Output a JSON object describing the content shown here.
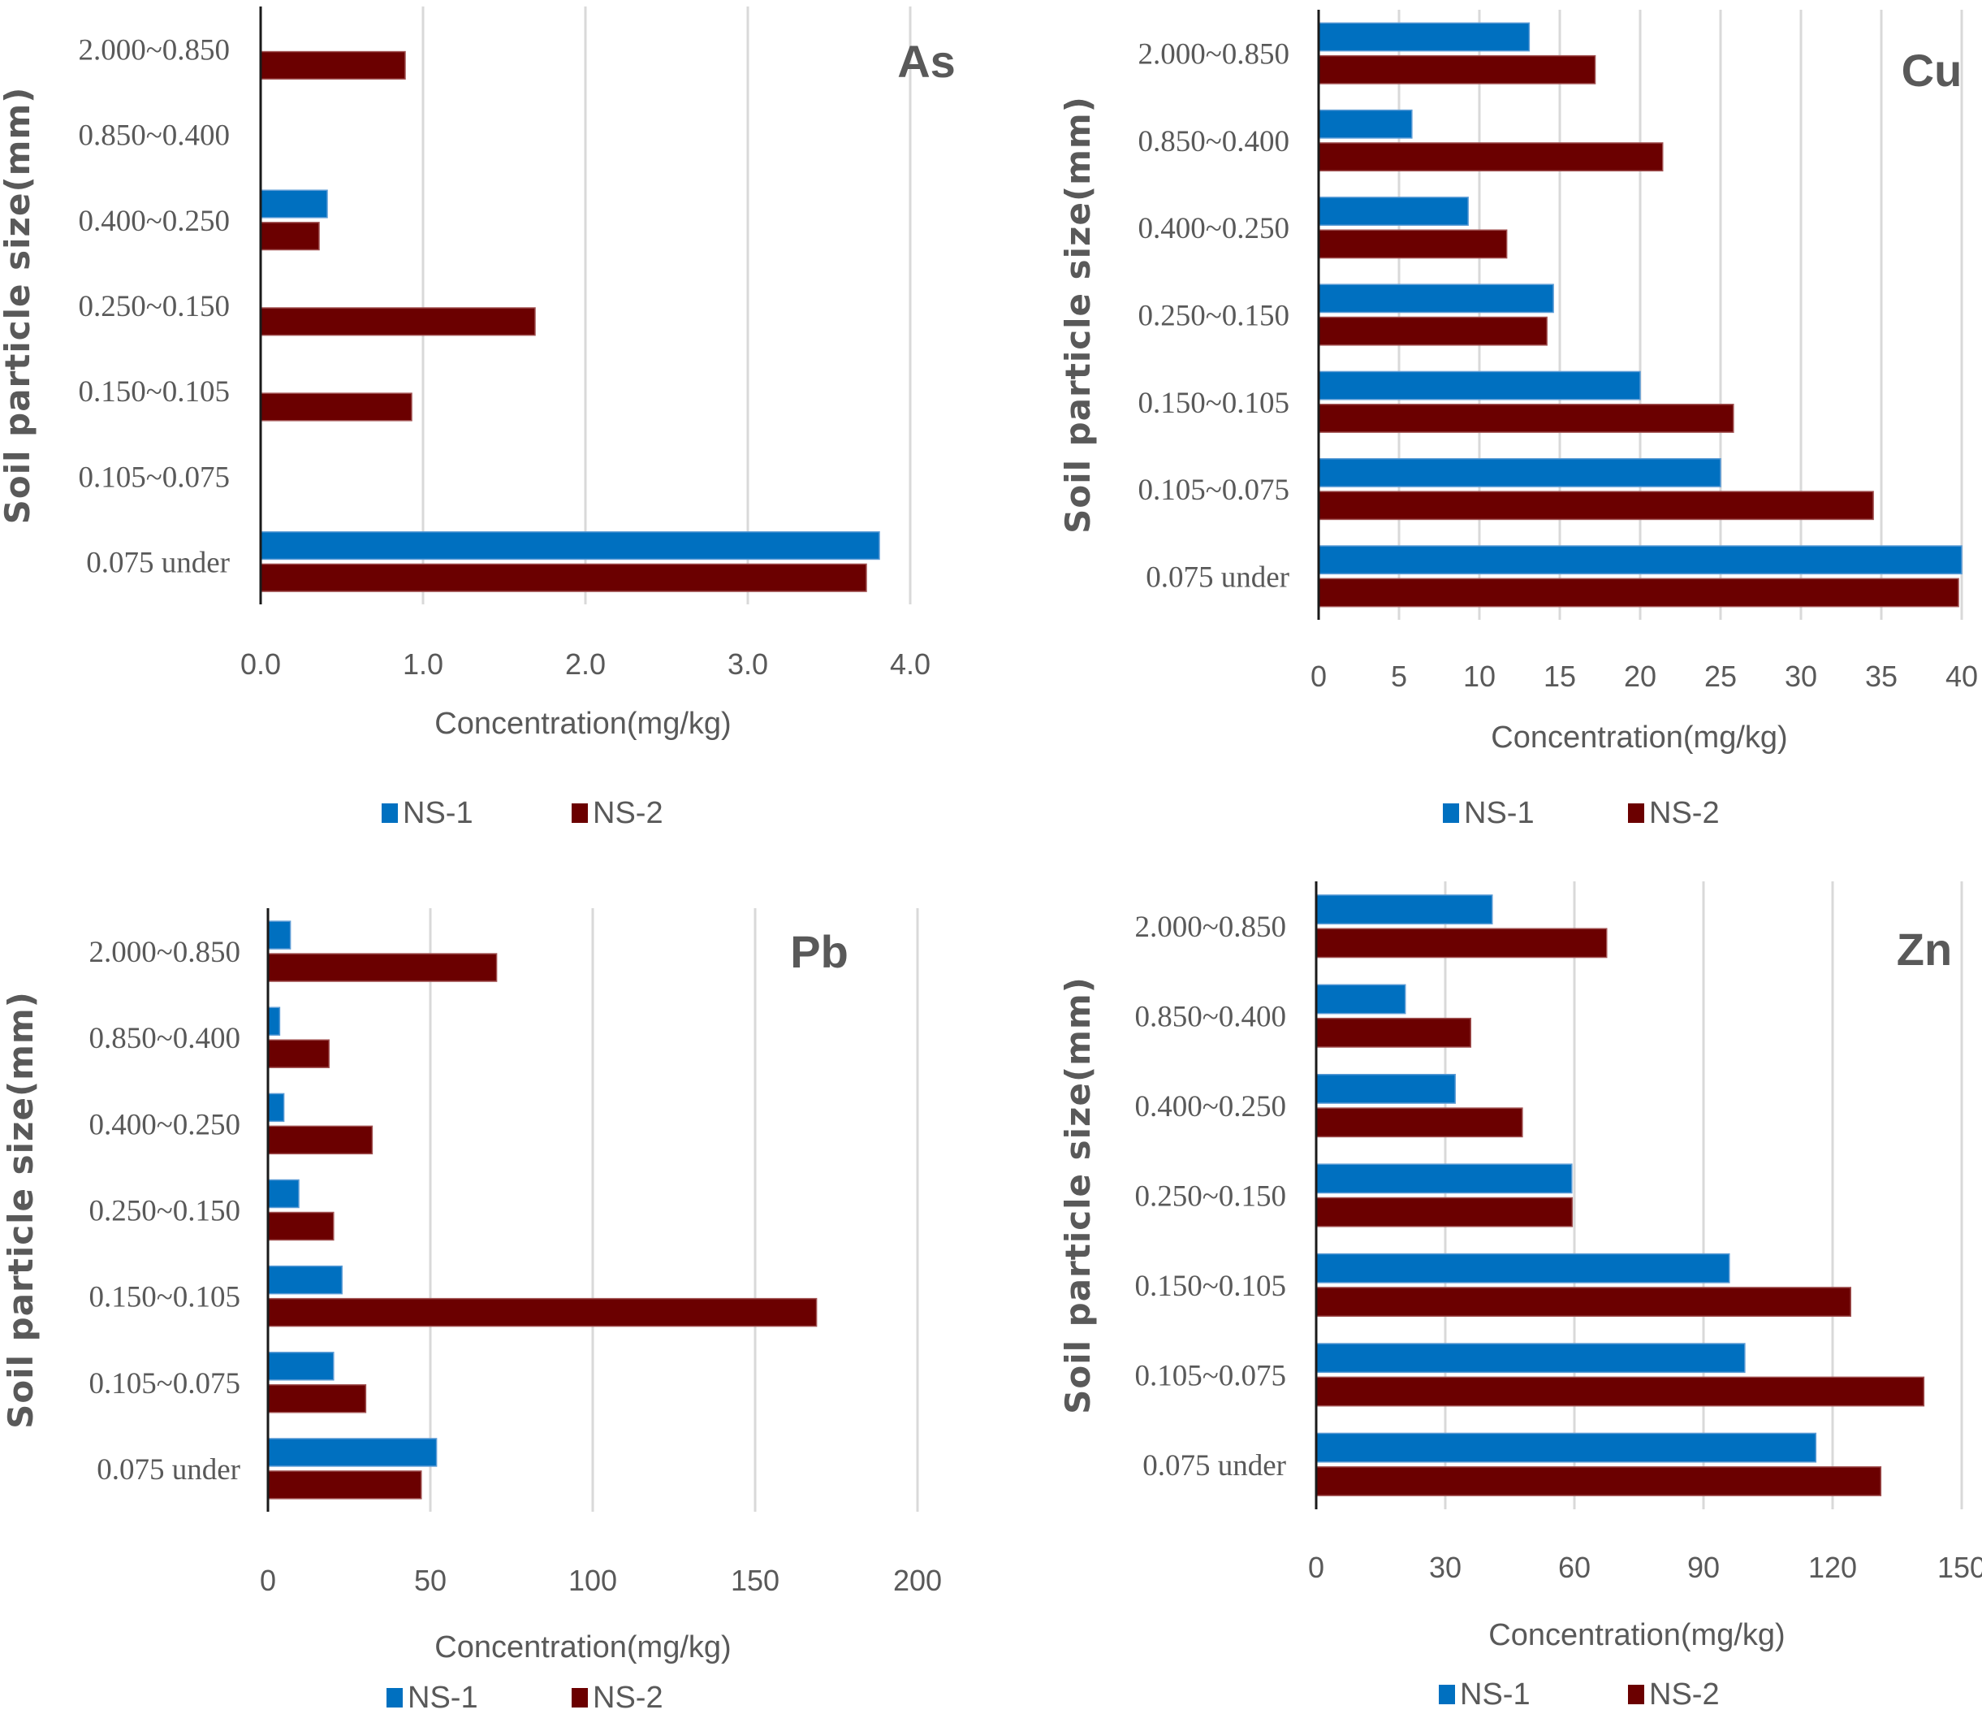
{
  "chart_data": [
    {
      "type": "bar",
      "orientation": "horizontal",
      "title": "As",
      "xlabel": "Concentration(mg/kg)",
      "ylabel": "Soil particle size(mm)",
      "categories": [
        "2.000~0.850",
        "0.850~0.400",
        "0.400~0.250",
        "0.250~0.150",
        "0.150~0.105",
        "0.105~0.075",
        "0.075 under"
      ],
      "xlim": [
        0,
        4.0
      ],
      "xticks": [
        "0.0",
        "1.0",
        "2.0",
        "3.0",
        "4.0"
      ],
      "tick_values": [
        0,
        1,
        2,
        3,
        4
      ],
      "grid": true,
      "legend_position": "bottom",
      "series": [
        {
          "name": "NS-1",
          "color": "#0070C0",
          "values": [
            0,
            0,
            0.41,
            0,
            0,
            0,
            3.81
          ]
        },
        {
          "name": "NS-2",
          "color": "#6B0000",
          "values": [
            0.89,
            0,
            0.36,
            1.69,
            0.93,
            0,
            3.73
          ]
        }
      ]
    },
    {
      "type": "bar",
      "orientation": "horizontal",
      "title": "Cu",
      "xlabel": "Concentration(mg/kg)",
      "ylabel": "Soil particle size(mm)",
      "categories": [
        "2.000~0.850",
        "0.850~0.400",
        "0.400~0.250",
        "0.250~0.150",
        "0.150~0.105",
        "0.105~0.075",
        "0.075 under"
      ],
      "xlim": [
        0,
        40
      ],
      "xticks": [
        "0",
        "5",
        "10",
        "15",
        "20",
        "25",
        "30",
        "35",
        "40"
      ],
      "tick_values": [
        0,
        5,
        10,
        15,
        20,
        25,
        30,
        35,
        40
      ],
      "grid": true,
      "legend_position": "bottom",
      "series": [
        {
          "name": "NS-1",
          "color": "#0070C0",
          "values": [
            13.1,
            5.8,
            9.3,
            14.6,
            20.0,
            25.0,
            40.0
          ]
        },
        {
          "name": "NS-2",
          "color": "#6B0000",
          "values": [
            17.2,
            21.4,
            11.7,
            14.2,
            25.8,
            34.5,
            39.8
          ]
        }
      ]
    },
    {
      "type": "bar",
      "orientation": "horizontal",
      "title": "Pb",
      "xlabel": "Concentration(mg/kg)",
      "ylabel": "Soil particle size(mm)",
      "categories": [
        "2.000~0.850",
        "0.850~0.400",
        "0.400~0.250",
        "0.250~0.150",
        "0.150~0.105",
        "0.105~0.075",
        "0.075 under"
      ],
      "xlim": [
        0,
        200
      ],
      "xticks": [
        "0",
        "50",
        "100",
        "150",
        "200"
      ],
      "tick_values": [
        0,
        50,
        100,
        150,
        200
      ],
      "grid": true,
      "legend_position": "bottom",
      "series": [
        {
          "name": "NS-1",
          "color": "#0070C0",
          "values": [
            6.9,
            3.6,
            4.9,
            9.5,
            22.8,
            20.2,
            51.9
          ]
        },
        {
          "name": "NS-2",
          "color": "#6B0000",
          "values": [
            70.4,
            18.8,
            32.1,
            20.2,
            168.9,
            30.1,
            47.2
          ]
        }
      ]
    },
    {
      "type": "bar",
      "orientation": "horizontal",
      "title": "Zn",
      "xlabel": "Concentration(mg/kg)",
      "ylabel": "Soil particle size(mm)",
      "categories": [
        "2.000~0.850",
        "0.850~0.400",
        "0.400~0.250",
        "0.250~0.150",
        "0.150~0.105",
        "0.105~0.075",
        "0.075 under"
      ],
      "xlim": [
        0,
        150
      ],
      "xticks": [
        "0",
        "30",
        "60",
        "90",
        "120",
        "150"
      ],
      "tick_values": [
        0,
        30,
        60,
        90,
        120,
        150
      ],
      "grid": true,
      "legend_position": "bottom",
      "series": [
        {
          "name": "NS-1",
          "color": "#0070C0",
          "values": [
            40.9,
            20.7,
            32.3,
            59.4,
            96.0,
            99.6,
            116.1
          ]
        },
        {
          "name": "NS-2",
          "color": "#6B0000",
          "values": [
            67.5,
            35.9,
            47.9,
            59.5,
            124.2,
            141.2,
            131.2
          ]
        }
      ]
    }
  ]
}
